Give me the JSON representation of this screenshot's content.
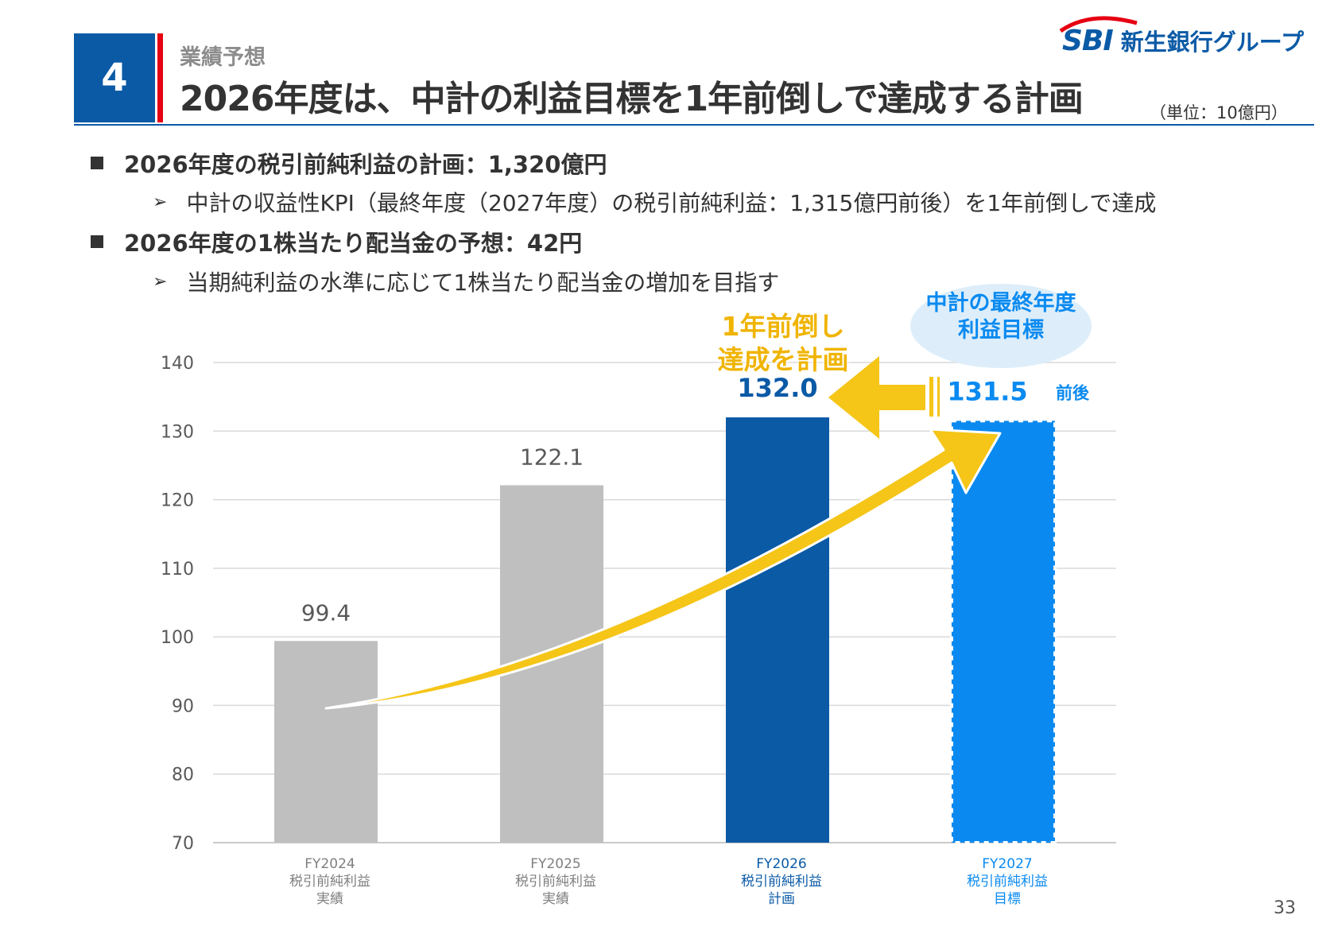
{
  "header": {
    "section_number": "4",
    "section_label": "業績予想",
    "title": "2026年度は、中計の利益目標を1年前倒しで達成する計画",
    "unit_note": "（単位：10億円）",
    "logo_mark": "SBI",
    "logo_text": "新生銀行グループ"
  },
  "bullets": [
    {
      "text": "2026年度の税引前純利益の計画：1,320億円",
      "sub": "中計の収益性KPI（最終年度（2027年度）の税引前純利益：1,315億円前後）を1年前倒しで達成"
    },
    {
      "text": "2026年度の1株当たり配当金の予想：42円",
      "sub": "当期純利益の水準に応じて1株当たり配当金の増加を目指す"
    }
  ],
  "callouts": {
    "advance_line1": "1年前倒し",
    "advance_line2": "達成を計画",
    "target_line1": "中計の最終年度",
    "target_line2": "利益目標",
    "approx_suffix": "前後"
  },
  "page_number": "33",
  "colors": {
    "actual": "#bfbfbf",
    "plan": "#0b5aa6",
    "target": "#0a8af0",
    "arrow": "#f5c518",
    "accent_red": "#e60012",
    "callout_text": "#f0b400",
    "target_bubble": "#ddeefa"
  },
  "chart_data": {
    "type": "bar",
    "categories": [
      [
        "FY2024",
        "税引前純利益",
        "実績"
      ],
      [
        "FY2025",
        "税引前純利益",
        "実績"
      ],
      [
        "FY2026",
        "税引前純利益",
        "計画"
      ],
      [
        "FY2027",
        "税引前純利益",
        "目標"
      ]
    ],
    "values": [
      99.4,
      122.1,
      132.0,
      131.5
    ],
    "value_labels": [
      "99.4",
      "122.1",
      "132.0",
      "131.5"
    ],
    "bar_styles": [
      "actual",
      "actual",
      "plan",
      "target-dashed"
    ],
    "ylim": [
      70,
      140
    ],
    "yticks": [
      70,
      80,
      90,
      100,
      110,
      120,
      130,
      140
    ],
    "grid": true,
    "legend": "none"
  }
}
